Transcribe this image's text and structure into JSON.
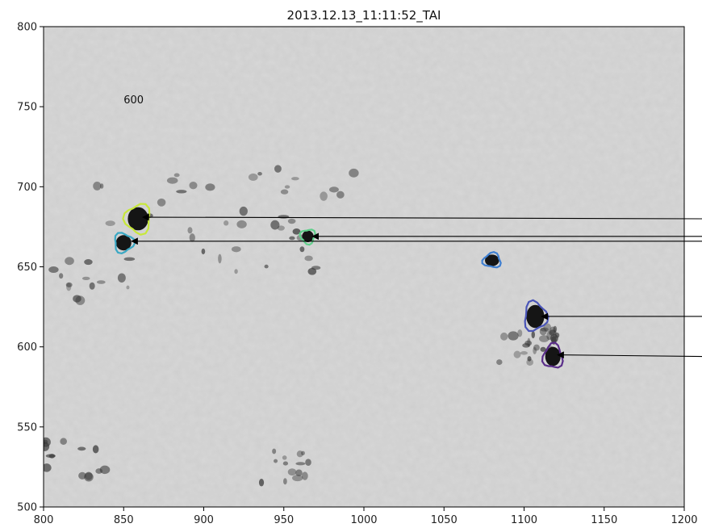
{
  "chart_data": {
    "type": "image-with-contours",
    "title": "2013.12.13_11:11:52_TAI",
    "xlabel": "",
    "ylabel": "",
    "xlim": [
      800,
      1200
    ],
    "ylim": [
      500,
      800
    ],
    "xticks": [
      800,
      850,
      900,
      950,
      1000,
      1050,
      1100,
      1150,
      1200
    ],
    "yticks": [
      500,
      550,
      600,
      650,
      700,
      750,
      800
    ],
    "grid": false,
    "annotations": [
      {
        "text": "600",
        "x": 850,
        "y": 752
      }
    ],
    "features": [
      {
        "center": [
          859,
          680
        ],
        "size": [
          16,
          18
        ],
        "color": "#c7e83a"
      },
      {
        "center": [
          850,
          665
        ],
        "size": [
          12,
          12
        ],
        "color": "#3aa8c4"
      },
      {
        "center": [
          965,
          669
        ],
        "size": [
          9,
          9
        ],
        "color": "#5fcf8a"
      },
      {
        "center": [
          1080,
          654
        ],
        "size": [
          11,
          9
        ],
        "color": "#3f7fd0"
      },
      {
        "center": [
          1107,
          619
        ],
        "size": [
          14,
          18
        ],
        "color": "#4a55b8"
      },
      {
        "center": [
          1118,
          594
        ],
        "size": [
          12,
          15
        ],
        "color": "#5a2d8a"
      }
    ],
    "arrows": [
      {
        "tip": [
          862,
          681
        ],
        "tail_y": 680,
        "color": "#000000"
      },
      {
        "tip": [
          855,
          666
        ],
        "tail_y": 666,
        "color": "#000000"
      },
      {
        "tip": [
          968,
          669
        ],
        "tail_y": 669,
        "color": "#000000"
      },
      {
        "tip": [
          1111,
          619
        ],
        "tail_y": 619,
        "color": "#000000"
      },
      {
        "tip": [
          1121,
          595
        ],
        "tail_y": 594,
        "color": "#000000"
      }
    ]
  }
}
